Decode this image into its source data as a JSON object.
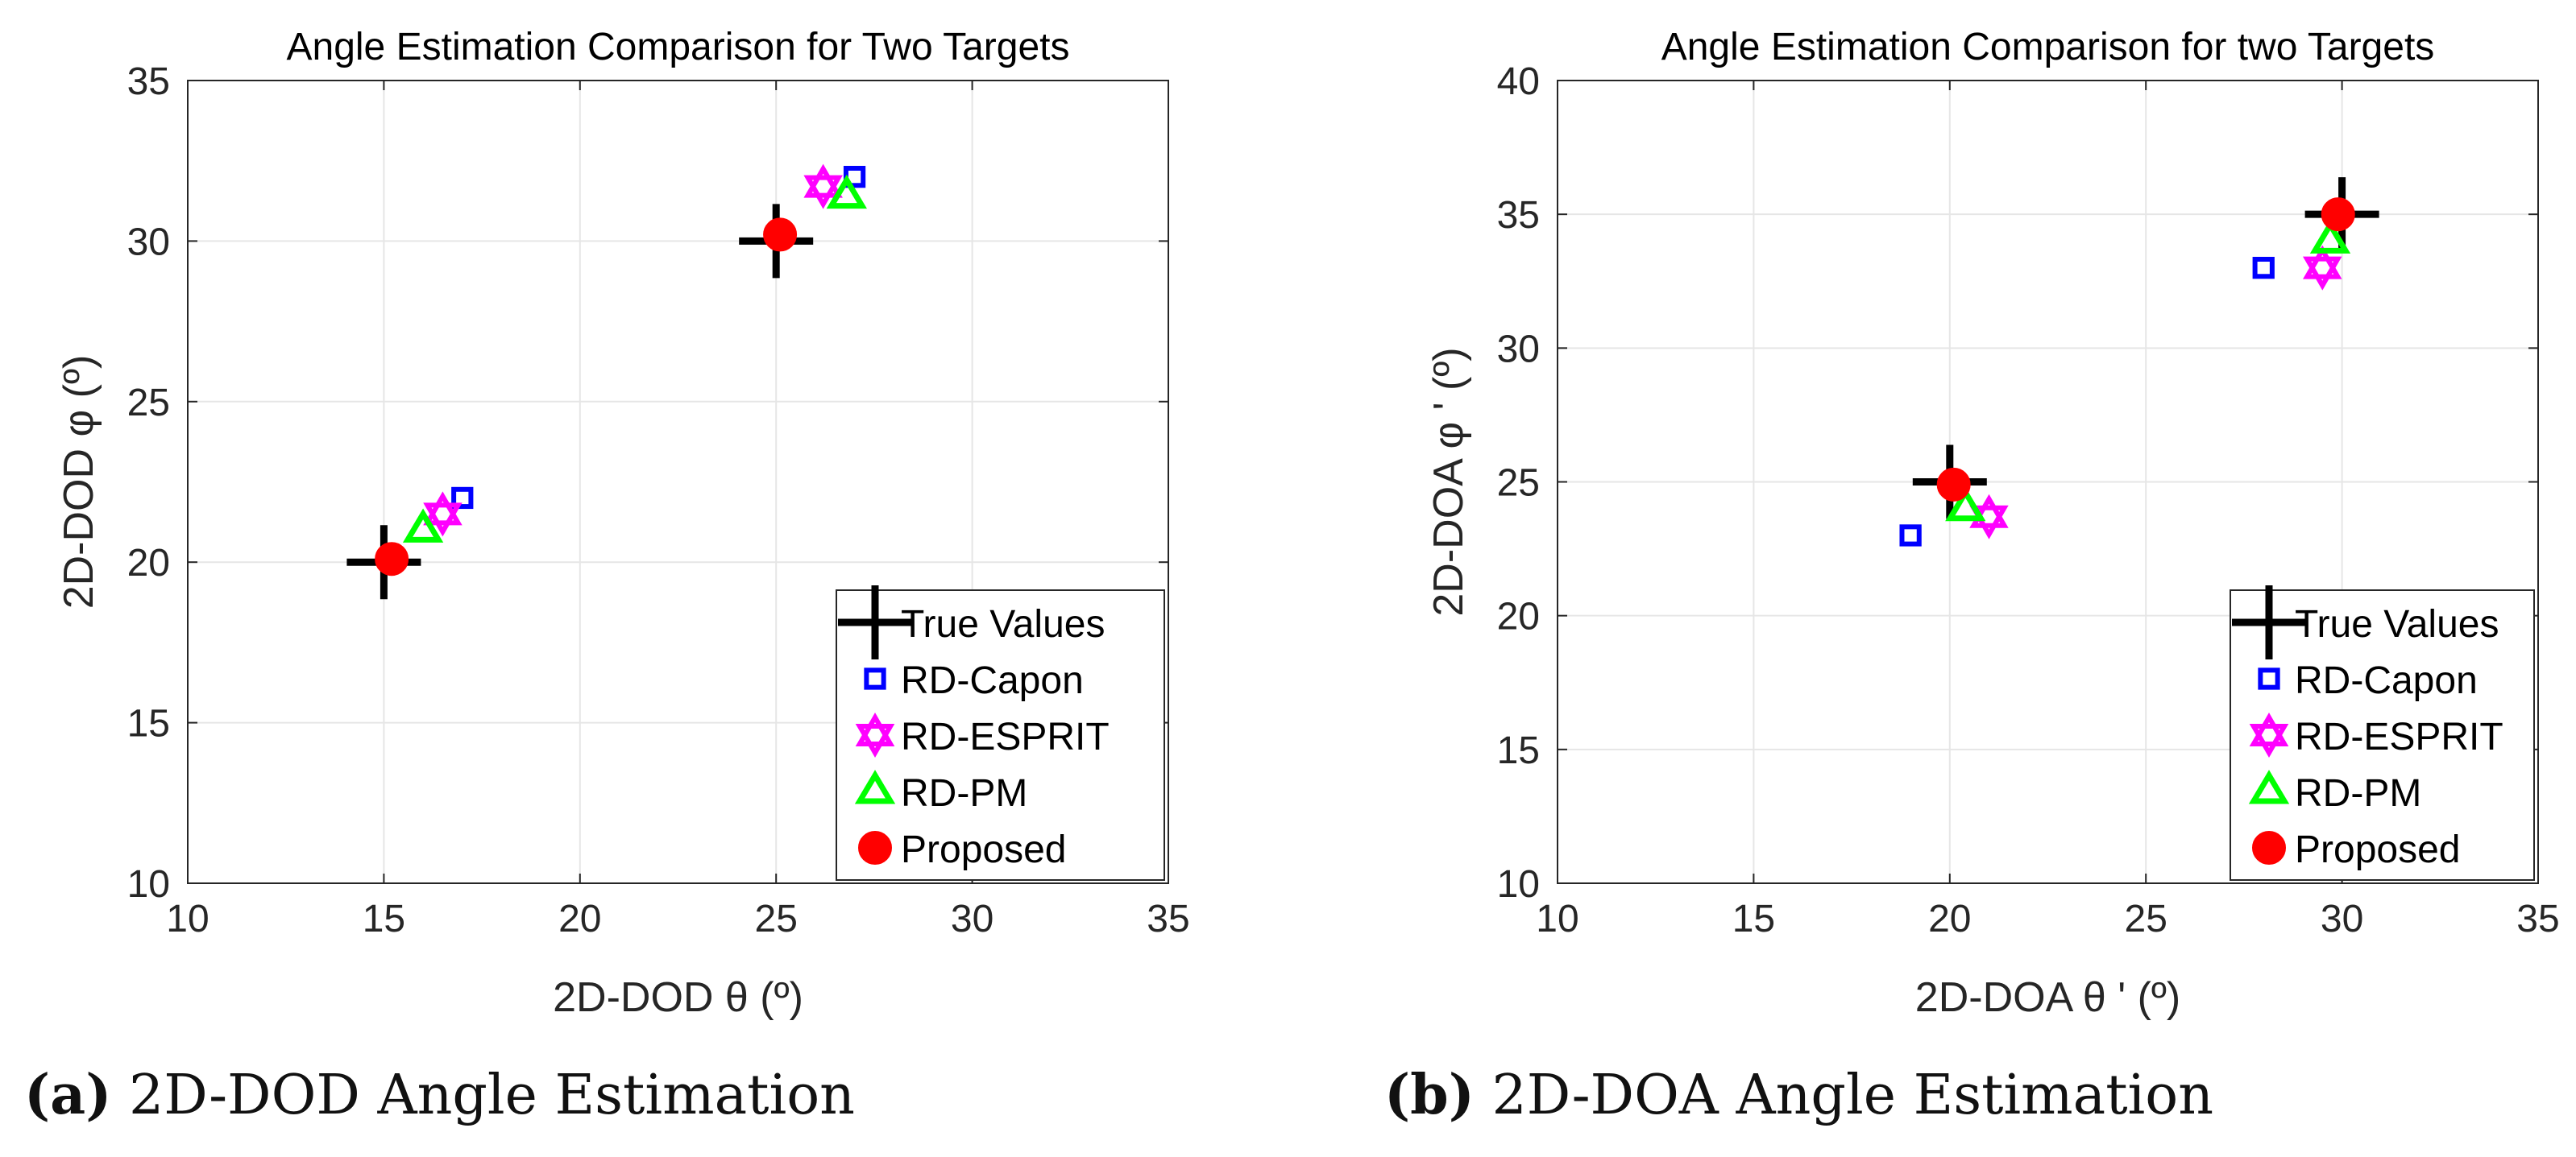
{
  "chart_data": [
    {
      "type": "scatter",
      "title": "Angle Estimation Comparison for Two Targets",
      "xlabel": "2D-DOD θ (º)",
      "ylabel": "2D-DOD φ (º)",
      "xlim": [
        10,
        35
      ],
      "ylim": [
        10,
        35
      ],
      "xticks": [
        10,
        15,
        20,
        25,
        30,
        35
      ],
      "yticks": [
        10,
        15,
        20,
        25,
        30,
        35
      ],
      "grid": true,
      "legend_position": "bottom-right",
      "series": [
        {
          "name": "True Values",
          "marker": "plus",
          "color": "#000000",
          "points": [
            [
              15,
              20
            ],
            [
              25,
              30
            ]
          ]
        },
        {
          "name": "RD-Capon",
          "marker": "square",
          "color": "#0000ff",
          "points": [
            [
              17,
              22
            ],
            [
              27,
              32
            ]
          ]
        },
        {
          "name": "RD-ESPRIT",
          "marker": "hexagram",
          "color": "#ff00ff",
          "points": [
            [
              16.5,
              21.5
            ],
            [
              26.2,
              31.7
            ]
          ]
        },
        {
          "name": "RD-PM",
          "marker": "triangle",
          "color": "#00ff00",
          "points": [
            [
              16,
              21
            ],
            [
              26.8,
              31.4
            ]
          ]
        },
        {
          "name": "Proposed",
          "marker": "circle",
          "color": "#ff0000",
          "points": [
            [
              15.2,
              20.1
            ],
            [
              25.1,
              30.2
            ]
          ]
        }
      ],
      "caption_label": "(a)",
      "caption_text": " 2D-DOD Angle Estimation"
    },
    {
      "type": "scatter",
      "title": "Angle Estimation Comparison for two Targets",
      "xlabel": "2D-DOA θ ' (º)",
      "ylabel": "2D-DOA φ ' (º)",
      "xlim": [
        10,
        35
      ],
      "ylim": [
        10,
        40
      ],
      "xticks": [
        10,
        15,
        20,
        25,
        30,
        35
      ],
      "yticks": [
        10,
        15,
        20,
        25,
        30,
        35,
        40
      ],
      "grid": true,
      "legend_position": "bottom-right",
      "series": [
        {
          "name": "True Values",
          "marker": "plus",
          "color": "#000000",
          "points": [
            [
              20,
              25
            ],
            [
              30,
              35
            ]
          ]
        },
        {
          "name": "RD-Capon",
          "marker": "square",
          "color": "#0000ff",
          "points": [
            [
              19,
              23
            ],
            [
              28,
              33
            ]
          ]
        },
        {
          "name": "RD-ESPRIT",
          "marker": "hexagram",
          "color": "#ff00ff",
          "points": [
            [
              21,
              23.7
            ],
            [
              29.5,
              33
            ]
          ]
        },
        {
          "name": "RD-PM",
          "marker": "triangle",
          "color": "#00ff00",
          "points": [
            [
              20.4,
              24
            ],
            [
              29.7,
              34
            ]
          ]
        },
        {
          "name": "Proposed",
          "marker": "circle",
          "color": "#ff0000",
          "points": [
            [
              20.1,
              24.9
            ],
            [
              29.9,
              35
            ]
          ]
        }
      ],
      "caption_label": "(b)",
      "caption_text": " 2D-DOA Angle Estimation"
    }
  ]
}
